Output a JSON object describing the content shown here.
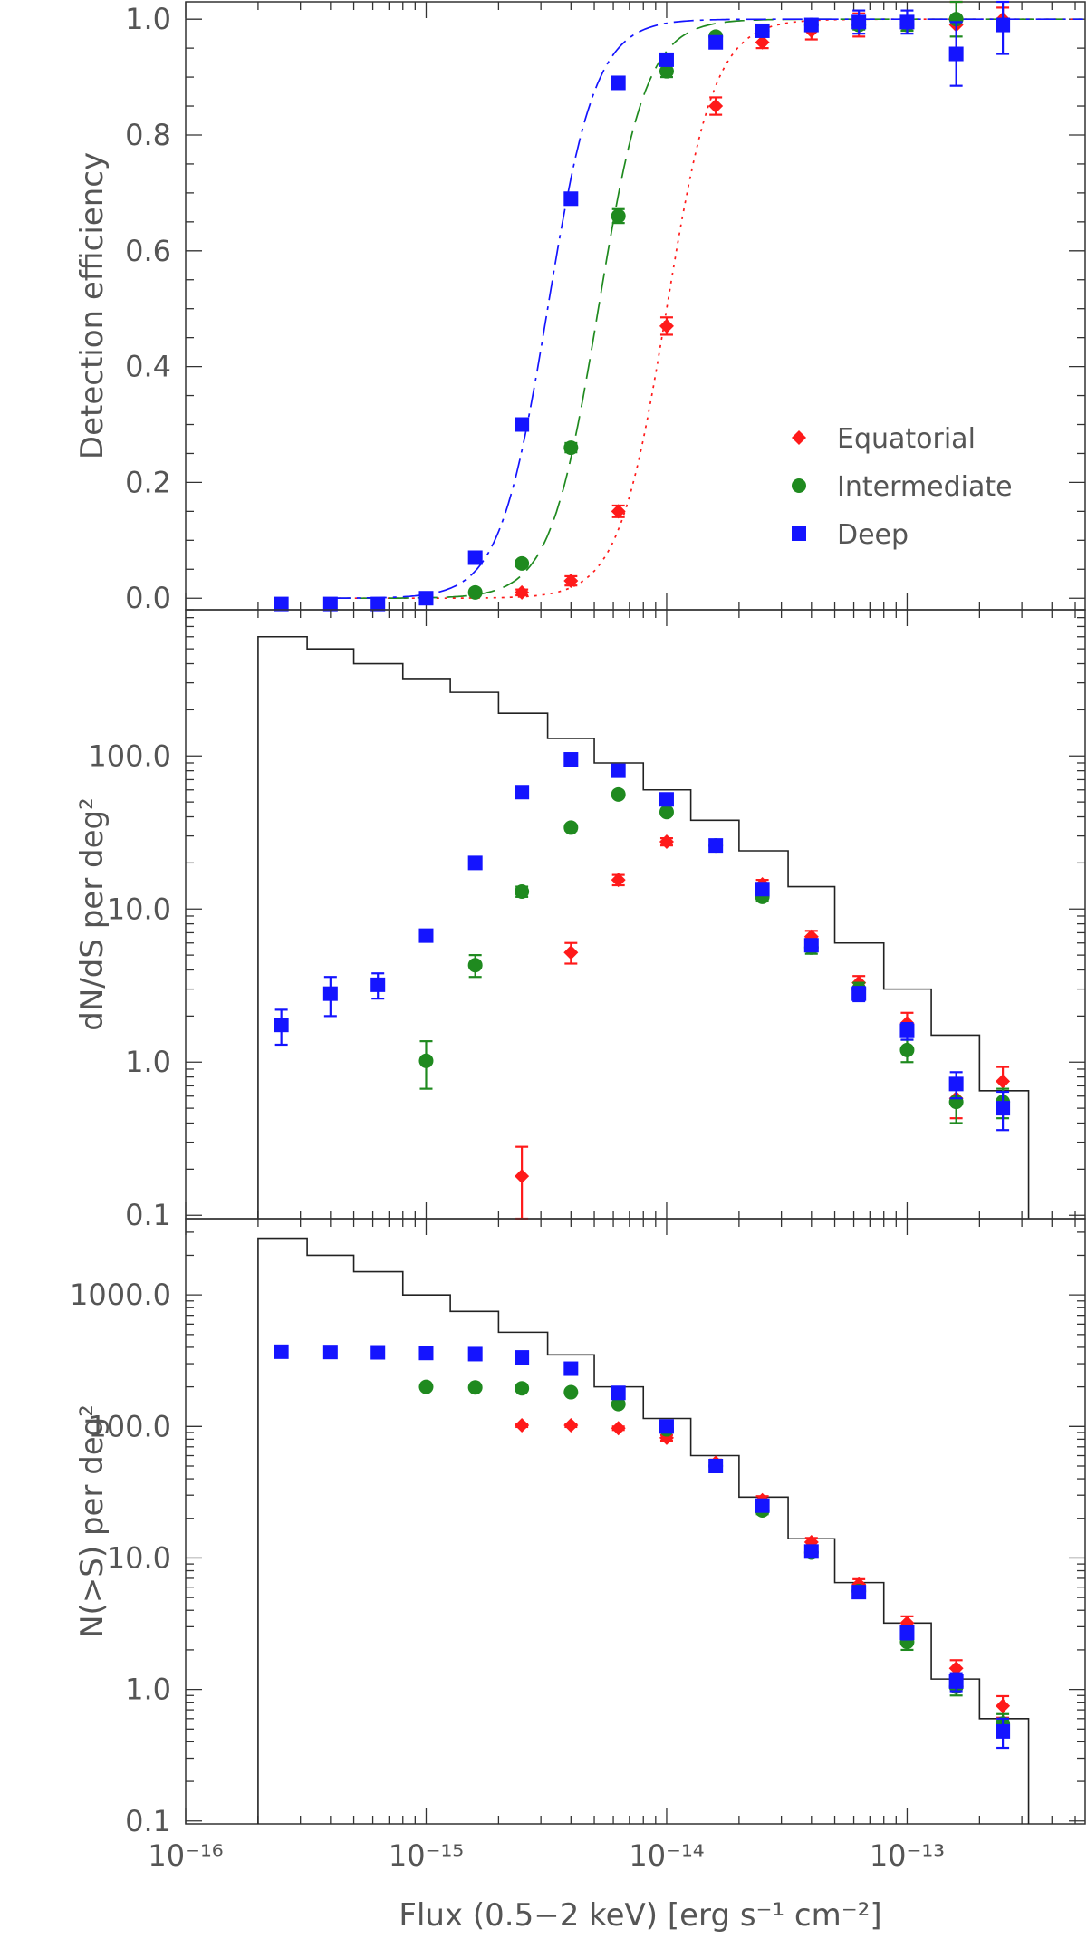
{
  "figure": {
    "xlabel": "Flux (0.5−2 keV) [erg s⁻¹ cm⁻²]",
    "x_scale": "log",
    "xlim": [
      1e-16,
      5.5e-13
    ],
    "x_tick_labels": [
      "10⁻¹⁶",
      "10⁻¹⁵",
      "10⁻¹⁴",
      "10⁻¹³"
    ],
    "colors": {
      "Equatorial": "#ff1a1a",
      "Intermediate": "#1f8a1f",
      "Deep": "#1414ff",
      "histogram": "#222222",
      "axes": "#333333"
    }
  },
  "chart_data": [
    {
      "id": "efficiency",
      "type": "scatter",
      "title": "",
      "ylabel": "Detection efficiency",
      "y_scale": "linear",
      "ylim": [
        -0.02,
        1.03
      ],
      "y_tick_labels": [
        "0.0",
        "0.2",
        "0.4",
        "0.6",
        "0.8",
        "1.0"
      ],
      "legend": {
        "position": "right-middle",
        "entries": [
          "Equatorial",
          "Intermediate",
          "Deep"
        ]
      },
      "curves": [
        {
          "name": "Equatorial",
          "style": "dotted",
          "midpoint_flux": 1e-14,
          "width_dex": 0.2
        },
        {
          "name": "Intermediate",
          "style": "dashed",
          "midpoint_flux": 5.2e-15,
          "width_dex": 0.2
        },
        {
          "name": "Deep",
          "style": "dash-dot",
          "midpoint_flux": 3.2e-15,
          "width_dex": 0.2
        }
      ],
      "series": [
        {
          "name": "Equatorial",
          "marker": "diamond",
          "x": [
            2.5e-15,
            4e-15,
            6.3e-15,
            1e-14,
            1.6e-14,
            2.5e-14,
            4e-14,
            6.3e-14,
            1e-13,
            1.6e-13,
            2.5e-13
          ],
          "y": [
            0.01,
            0.03,
            0.15,
            0.47,
            0.85,
            0.96,
            0.98,
            0.99,
            0.99,
            0.99,
            1.0
          ],
          "err": [
            0.005,
            0.008,
            0.01,
            0.015,
            0.015,
            0.01,
            0.015,
            0.02,
            0.01,
            0.04,
            0.02
          ]
        },
        {
          "name": "Intermediate",
          "marker": "circle",
          "x": [
            1.6e-15,
            2.5e-15,
            4e-15,
            6.3e-15,
            1e-14,
            1.6e-14,
            2.5e-14,
            4e-14,
            6.3e-14,
            1e-13,
            1.6e-13
          ],
          "y": [
            0.01,
            0.06,
            0.26,
            0.66,
            0.91,
            0.97,
            0.98,
            0.99,
            0.99,
            0.99,
            1.0
          ],
          "err": [
            0.004,
            0.005,
            0.008,
            0.012,
            0.01,
            0.005,
            0.005,
            0.005,
            0.008,
            0.01,
            0.03
          ]
        },
        {
          "name": "Deep",
          "marker": "square",
          "x": [
            2.5e-16,
            4e-16,
            6.3e-16,
            1e-15,
            1.6e-15,
            2.5e-15,
            4e-15,
            6.3e-15,
            1e-14,
            1.6e-14,
            2.5e-14,
            4e-14,
            6.3e-14,
            1e-13,
            1.6e-13,
            2.5e-13
          ],
          "y": [
            -0.01,
            -0.01,
            -0.01,
            0.0,
            0.07,
            0.3,
            0.69,
            0.89,
            0.93,
            0.96,
            0.98,
            0.99,
            0.995,
            0.995,
            0.94,
            0.99
          ],
          "err": [
            0.002,
            0.002,
            0.002,
            0.003,
            0.005,
            0.006,
            0.01,
            0.008,
            0.01,
            0.01,
            0.01,
            0.01,
            0.02,
            0.02,
            0.055,
            0.05
          ]
        }
      ]
    },
    {
      "id": "differential",
      "type": "scatter",
      "title": "",
      "ylabel": "dN/dS per deg²",
      "y_scale": "log",
      "ylim": [
        0.095,
        900
      ],
      "y_tick_labels": [
        "0.1",
        "1.0",
        "10.0",
        "100.0"
      ],
      "histogram": {
        "edges": [
          2e-16,
          3.2e-16,
          5e-16,
          8e-16,
          1.26e-15,
          2e-15,
          3.2e-15,
          5e-15,
          8e-15,
          1.26e-14,
          2e-14,
          3.2e-14,
          5e-14,
          8e-14,
          1.26e-13,
          2e-13,
          3.2e-13
        ],
        "values": [
          600,
          500,
          400,
          320,
          260,
          190,
          130,
          90,
          60,
          38,
          24,
          14,
          6,
          3,
          1.5,
          0.65,
          0.6
        ]
      },
      "series": [
        {
          "name": "Equatorial",
          "marker": "diamond",
          "x": [
            2.5e-15,
            4e-15,
            6.3e-15,
            1e-14,
            1.6e-14,
            2.5e-14,
            4e-14,
            6.3e-14,
            1e-13,
            1.6e-13,
            2.5e-13
          ],
          "y": [
            0.18,
            5.2,
            15.5,
            27.5,
            26,
            14.5,
            6.6,
            3.3,
            1.8,
            0.58,
            0.75
          ],
          "err": [
            0.1,
            0.8,
            1.2,
            1.5,
            1.5,
            1.0,
            0.6,
            0.35,
            0.3,
            0.15,
            0.18
          ]
        },
        {
          "name": "Intermediate",
          "marker": "circle",
          "x": [
            1e-15,
            1.6e-15,
            2.5e-15,
            4e-15,
            6.3e-15,
            1e-14,
            1.6e-14,
            2.5e-14,
            4e-14,
            6.3e-14,
            1e-13,
            1.6e-13,
            2.5e-13
          ],
          "y": [
            1.02,
            4.3,
            13,
            34,
            56,
            43,
            26,
            12,
            5.6,
            3.0,
            1.2,
            0.55,
            0.55
          ],
          "err": [
            0.35,
            0.7,
            1.0,
            1.5,
            2.0,
            2.0,
            1.5,
            0.8,
            0.5,
            0.3,
            0.2,
            0.15,
            0.12
          ]
        },
        {
          "name": "Deep",
          "marker": "square",
          "x": [
            2.5e-16,
            4e-16,
            6.3e-16,
            1e-15,
            1.6e-15,
            2.5e-15,
            4e-15,
            6.3e-15,
            1e-14,
            1.6e-14,
            2.5e-14,
            4e-14,
            6.3e-14,
            1e-13,
            1.6e-13,
            2.5e-13
          ],
          "y": [
            1.75,
            2.8,
            3.2,
            6.7,
            20,
            58,
            95,
            80,
            52,
            26,
            13.5,
            5.8,
            2.8,
            1.6,
            0.72,
            0.5
          ],
          "err": [
            0.45,
            0.8,
            0.6,
            0.5,
            1.0,
            2.0,
            3.0,
            3.0,
            2.0,
            1.5,
            1.0,
            0.5,
            0.3,
            0.2,
            0.14,
            0.14
          ]
        }
      ]
    },
    {
      "id": "cumulative",
      "type": "scatter",
      "title": "",
      "ylabel": "N(>S) per deg²",
      "y_scale": "log",
      "ylim": [
        0.095,
        3800
      ],
      "y_tick_labels": [
        "0.1",
        "1.0",
        "10.0",
        "100.0",
        "1000.0"
      ],
      "histogram": {
        "edges": [
          2e-16,
          3.2e-16,
          5e-16,
          8e-16,
          1.26e-15,
          2e-15,
          3.2e-15,
          5e-15,
          8e-15,
          1.26e-14,
          2e-14,
          3.2e-14,
          5e-14,
          8e-14,
          1.26e-13,
          2e-13,
          3.2e-13
        ],
        "values": [
          2700,
          2000,
          1500,
          1000,
          750,
          520,
          350,
          200,
          115,
          60,
          29,
          14,
          6.5,
          3.2,
          1.2,
          0.6,
          0.6
        ]
      },
      "series": [
        {
          "name": "Equatorial",
          "marker": "diamond",
          "x": [
            2.5e-15,
            4e-15,
            6.3e-15,
            1e-14,
            1.6e-14,
            2.5e-14,
            4e-14,
            6.3e-14,
            1e-13,
            1.6e-13,
            2.5e-13
          ],
          "y": [
            102,
            102,
            97,
            82,
            53,
            27.5,
            13.2,
            6.3,
            3.2,
            1.45,
            0.75
          ],
          "err": [
            3,
            3,
            3,
            4,
            3,
            2,
            1.0,
            0.6,
            0.4,
            0.22,
            0.14
          ]
        },
        {
          "name": "Intermediate",
          "marker": "circle",
          "x": [
            1e-15,
            1.6e-15,
            2.5e-15,
            4e-15,
            6.3e-15,
            1e-14,
            1.6e-14,
            2.5e-14,
            4e-14,
            6.3e-14,
            1e-13,
            1.6e-13,
            2.5e-13
          ],
          "y": [
            200,
            198,
            195,
            182,
            148,
            95,
            50,
            23,
            11,
            5.6,
            2.3,
            1.05,
            0.55
          ],
          "err": [
            5,
            5,
            5,
            5,
            5,
            4,
            3,
            1.5,
            0.8,
            0.5,
            0.3,
            0.15,
            0.1
          ]
        },
        {
          "name": "Deep",
          "marker": "square",
          "x": [
            2.5e-16,
            4e-16,
            6.3e-16,
            1e-15,
            1.6e-15,
            2.5e-15,
            4e-15,
            6.3e-15,
            1e-14,
            1.6e-14,
            2.5e-14,
            4e-14,
            6.3e-14,
            1e-13,
            1.6e-13,
            2.5e-13
          ],
          "y": [
            370,
            368,
            366,
            362,
            355,
            335,
            275,
            180,
            100,
            50,
            25,
            11.2,
            5.5,
            2.7,
            1.15,
            0.48
          ],
          "err": [
            8,
            8,
            8,
            8,
            8,
            8,
            8,
            6,
            5,
            3,
            1.5,
            0.8,
            0.5,
            0.3,
            0.18,
            0.12
          ]
        }
      ]
    }
  ]
}
